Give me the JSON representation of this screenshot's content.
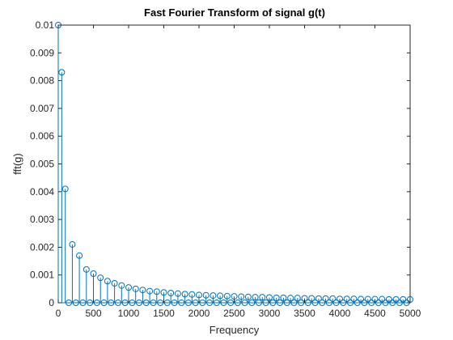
{
  "chart_data": {
    "type": "stem",
    "title": "Fast Fourier Transform of signal g(t)",
    "xlabel": "Frequency",
    "ylabel": "fft(g)",
    "xlim": [
      0,
      5000
    ],
    "ylim": [
      0,
      0.01
    ],
    "grid": false,
    "color": "#0072BD",
    "x_tick_labels": [
      "0",
      "500",
      "1000",
      "1500",
      "2000",
      "2500",
      "3000",
      "3500",
      "4000",
      "4500",
      "5000"
    ],
    "y_tick_labels": [
      "0",
      "0.001",
      "0.002",
      "0.003",
      "0.004",
      "0.005",
      "0.006",
      "0.007",
      "0.008",
      "0.009",
      "0.01"
    ],
    "series": [
      {
        "x": [
          0,
          50,
          100,
          150,
          200,
          250,
          300,
          350,
          400,
          450,
          500,
          550,
          600,
          650,
          700,
          750,
          800,
          850,
          900,
          950,
          1000,
          1050,
          1100,
          1150,
          1200,
          1250,
          1300,
          1350,
          1400,
          1450,
          1500,
          1550,
          1600,
          1650,
          1700,
          1750,
          1800,
          1850,
          1900,
          1950,
          2000,
          2050,
          2100,
          2150,
          2200,
          2250,
          2300,
          2350,
          2400,
          2450,
          2500,
          2550,
          2600,
          2650,
          2700,
          2750,
          2800,
          2850,
          2900,
          2950,
          3000,
          3050,
          3100,
          3150,
          3200,
          3250,
          3300,
          3350,
          3400,
          3450,
          3500,
          3550,
          3600,
          3650,
          3700,
          3750,
          3800,
          3850,
          3900,
          3950,
          4000,
          4050,
          4100,
          4150,
          4200,
          4250,
          4300,
          4350,
          4400,
          4450,
          4500,
          4550,
          4600,
          4650,
          4700,
          4750,
          4800,
          4850,
          4900,
          4950,
          5000
        ],
        "values": [
          0.01,
          0.0083,
          0.0041,
          0.0,
          0.0021,
          0.0,
          0.0017,
          0.0,
          0.0012,
          0.0,
          0.00105,
          0.0,
          0.0009,
          0.0,
          0.00078,
          0.0,
          0.0007,
          0.0,
          0.00062,
          0.0,
          0.00055,
          0.0,
          0.0005,
          0.0,
          0.00046,
          0.0,
          0.00042,
          0.0,
          0.0004,
          0.0,
          0.00037,
          0.0,
          0.00035,
          0.0,
          0.00033,
          0.0,
          0.00031,
          0.0,
          0.0003,
          0.0,
          0.00028,
          0.0,
          0.00027,
          0.0,
          0.00026,
          0.0,
          0.00025,
          0.0,
          0.00024,
          0.0,
          0.00023,
          0.0,
          0.00022,
          0.0,
          0.00021,
          0.0,
          0.0002,
          0.0,
          0.0002,
          0.0,
          0.00019,
          0.0,
          0.00018,
          0.0,
          0.00018,
          0.0,
          0.00017,
          0.0,
          0.00017,
          0.0,
          0.00016,
          0.0,
          0.00016,
          0.0,
          0.00015,
          0.0,
          0.00015,
          0.0,
          0.00015,
          0.0,
          0.00014,
          0.0,
          0.00014,
          0.0,
          0.00014,
          0.0,
          0.00013,
          0.0,
          0.00013,
          0.0,
          0.00013,
          0.0,
          0.00013,
          0.0,
          0.00012,
          0.0,
          0.00012,
          0.0,
          0.00012,
          0.0,
          0.00012
        ]
      }
    ]
  }
}
